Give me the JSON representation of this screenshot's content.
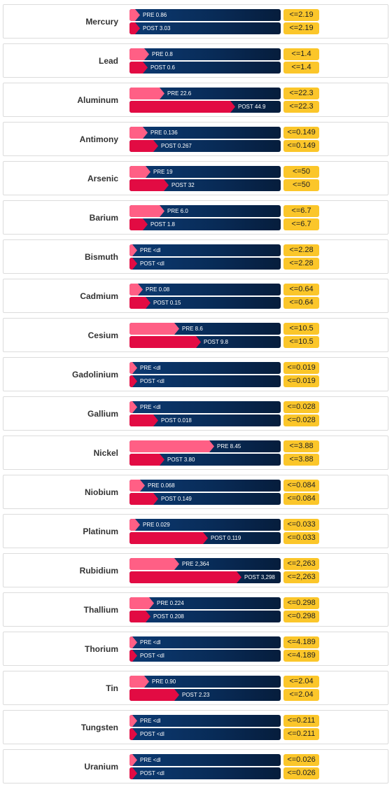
{
  "chart_data": {
    "type": "bar",
    "colors": {
      "pre": "#ff5f85",
      "post": "#e20b43",
      "track": "#0c3a72",
      "limit": "#fbc62a"
    },
    "rows": [
      {
        "name": "Mercury",
        "pre_label": "PRE 0.86",
        "post_label": "POST 3.03",
        "limit_label": "<=2.19",
        "pre_fill": 0.07,
        "post_fill": 0.07
      },
      {
        "name": "Lead",
        "pre_label": "PRE 0.8",
        "post_label": "POST 0.6",
        "limit_label": "<=1.4",
        "pre_fill": 0.13,
        "post_fill": 0.12
      },
      {
        "name": "Aluminum",
        "pre_label": "PRE 22.6",
        "post_label": "POST 44.9",
        "limit_label": "<=22.3",
        "pre_fill": 0.23,
        "post_fill": 0.7
      },
      {
        "name": "Antimony",
        "pre_label": "PRE 0.136",
        "post_label": "POST 0.267",
        "limit_label": "<=0.149",
        "pre_fill": 0.12,
        "post_fill": 0.19
      },
      {
        "name": "Arsenic",
        "pre_label": "PRE 19",
        "post_label": "POST 32",
        "limit_label": "<=50",
        "pre_fill": 0.14,
        "post_fill": 0.26
      },
      {
        "name": "Barium",
        "pre_label": "PRE 6.0",
        "post_label": "POST 1.8",
        "limit_label": "<=6.7",
        "pre_fill": 0.23,
        "post_fill": 0.12
      },
      {
        "name": "Bismuth",
        "pre_label": "PRE <dl",
        "post_label": "POST <dl",
        "limit_label": "<=2.28",
        "pre_fill": 0.05,
        "post_fill": 0.05
      },
      {
        "name": "Cadmium",
        "pre_label": "PRE 0.08",
        "post_label": "POST 0.15",
        "limit_label": "<=0.64",
        "pre_fill": 0.09,
        "post_fill": 0.14
      },
      {
        "name": "Cesium",
        "pre_label": "PRE 8.6",
        "post_label": "POST 9.8",
        "limit_label": "<=10.5",
        "pre_fill": 0.33,
        "post_fill": 0.47
      },
      {
        "name": "Gadolinium",
        "pre_label": "PRE <dl",
        "post_label": "POST <dl",
        "limit_label": "<=0.019",
        "pre_fill": 0.05,
        "post_fill": 0.05
      },
      {
        "name": "Gallium",
        "pre_label": "PRE <dl",
        "post_label": "POST 0.018",
        "limit_label": "<=0.028",
        "pre_fill": 0.05,
        "post_fill": 0.19
      },
      {
        "name": "Nickel",
        "pre_label": "PRE 8.45",
        "post_label": "POST 3.80",
        "limit_label": "<=3.88",
        "pre_fill": 0.56,
        "post_fill": 0.23
      },
      {
        "name": "Niobium",
        "pre_label": "PRE 0.068",
        "post_label": "POST 0.149",
        "limit_label": "<=0.084",
        "pre_fill": 0.1,
        "post_fill": 0.19
      },
      {
        "name": "Platinum",
        "pre_label": "PRE 0.029",
        "post_label": "POST 0.119",
        "limit_label": "<=0.033",
        "pre_fill": 0.07,
        "post_fill": 0.52
      },
      {
        "name": "Rubidium",
        "pre_label": "PRE 2,364",
        "post_label": "POST 3,298",
        "limit_label": "<=2,263",
        "pre_fill": 0.33,
        "post_fill": 0.74
      },
      {
        "name": "Thallium",
        "pre_label": "PRE 0.224",
        "post_label": "POST 0.208",
        "limit_label": "<=0.298",
        "pre_fill": 0.16,
        "post_fill": 0.14
      },
      {
        "name": "Thorium",
        "pre_label": "PRE <dl",
        "post_label": "POST <dl",
        "limit_label": "<=4.189",
        "pre_fill": 0.05,
        "post_fill": 0.05
      },
      {
        "name": "Tin",
        "pre_label": "PRE 0.90",
        "post_label": "POST 2.23",
        "limit_label": "<=2.04",
        "pre_fill": 0.13,
        "post_fill": 0.33
      },
      {
        "name": "Tungsten",
        "pre_label": "PRE <dl",
        "post_label": "POST <dl",
        "limit_label": "<=0.211",
        "pre_fill": 0.05,
        "post_fill": 0.05
      },
      {
        "name": "Uranium",
        "pre_label": "PRE <dl",
        "post_label": "POST <dl",
        "limit_label": "<=0.026",
        "pre_fill": 0.05,
        "post_fill": 0.05
      }
    ]
  }
}
